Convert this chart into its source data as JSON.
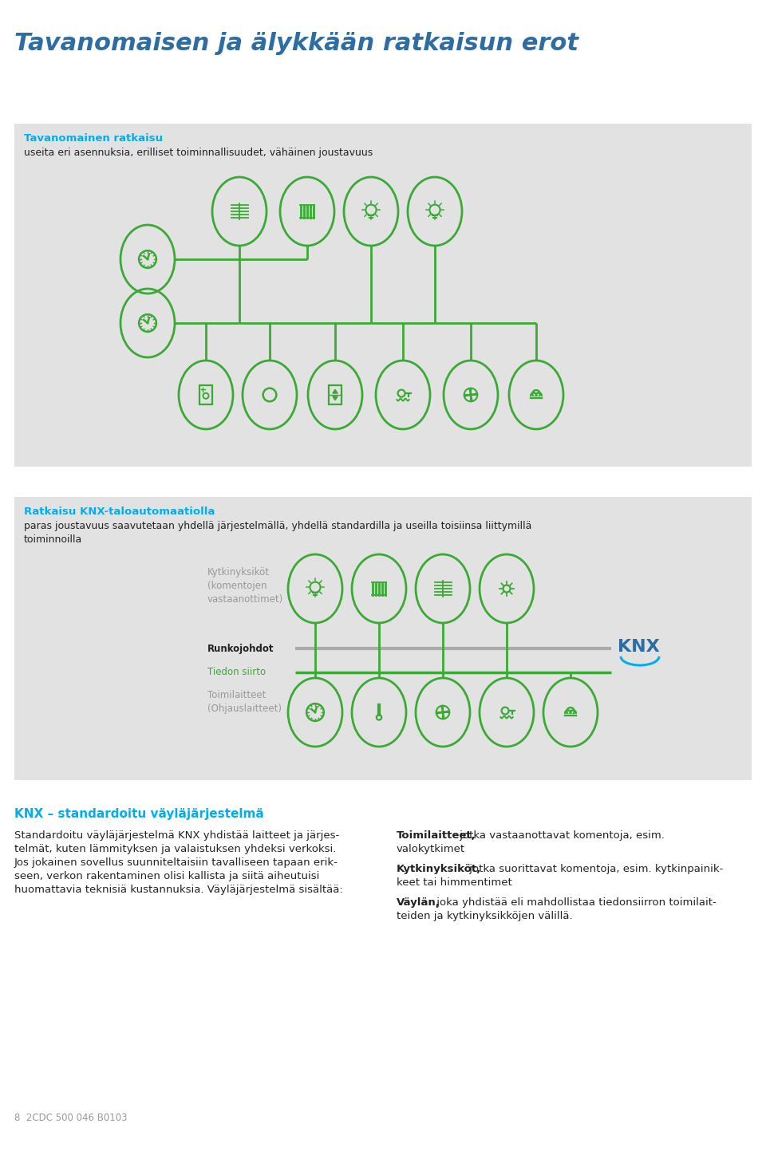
{
  "title": "Tavanomaisen ja älykkään ratkaisun erot",
  "bg_color": "#ffffff",
  "panel_bg": "#e2e2e2",
  "green": "#3aaa35",
  "blue": "#2e6da4",
  "cyan": "#00aeef",
  "gray_text": "#999999",
  "dark_text": "#444444",
  "black_text": "#222222",
  "section1_title": "Tavanomainen ratkaisu",
  "section1_subtitle": "useita eri asennuksia, erilliset toiminnallisuudet, vähäinen joustavuus",
  "section2_title": "Ratkaisu KNX-taloautomaatiolla",
  "section2_subtitle_l1": "paras joustavuus saavutetaan yhdellä järjestelmällä, yhdellä standardilla ja useilla toisiinsa liittymillä",
  "section2_subtitle_l2": "toiminnoilla",
  "knx_section_title": "KNX – standardoitu väyläjärjestelmä",
  "para_l1": "Standardoitu väyläjärjestelmä KNX yhdistää laitteet ja järjes-",
  "para_l2": "telmät, kuten lämmityksen ja valaistuksen yhdeksi verkoksi.",
  "para_l3": "Jos jokainen sovellus suunniteltaisiin tavalliseen tapaan erik-",
  "para_l4": "seen, verkon rakentaminen olisi kallista ja siitä aiheutuisi",
  "para_l5": "huomattavia teknisiä kustannuksia. Väyläjärjestelmä sisältää:",
  "r1b": "Toimilaitteet,",
  "r1a": " jotka vastaanottavat komentoja, esim.",
  "r1c": "valokytkimet",
  "r2b": "Kytkinyksiköt,",
  "r2a": " jotka suorittavat komentoja, esim. kytkinpainik-",
  "r2c": "keet tai himmentimet",
  "r3b": "Väylän,",
  "r3a": " joka yhdistää eli mahdollistaa tiedonsiirron toimilait-",
  "r3c": "teiden ja kytkinyksikköjen välillä.",
  "label_kytkin": "Kytkinyksiköt\n(komentojen\nvastaanottimet)",
  "label_runko": "Runkojohdot",
  "label_tiedon": "Tiedon siirto",
  "label_toimil": "Toimilaitteet\n(Ohjauslaitteet)",
  "footer": "8  2CDC 500 046 B0103"
}
